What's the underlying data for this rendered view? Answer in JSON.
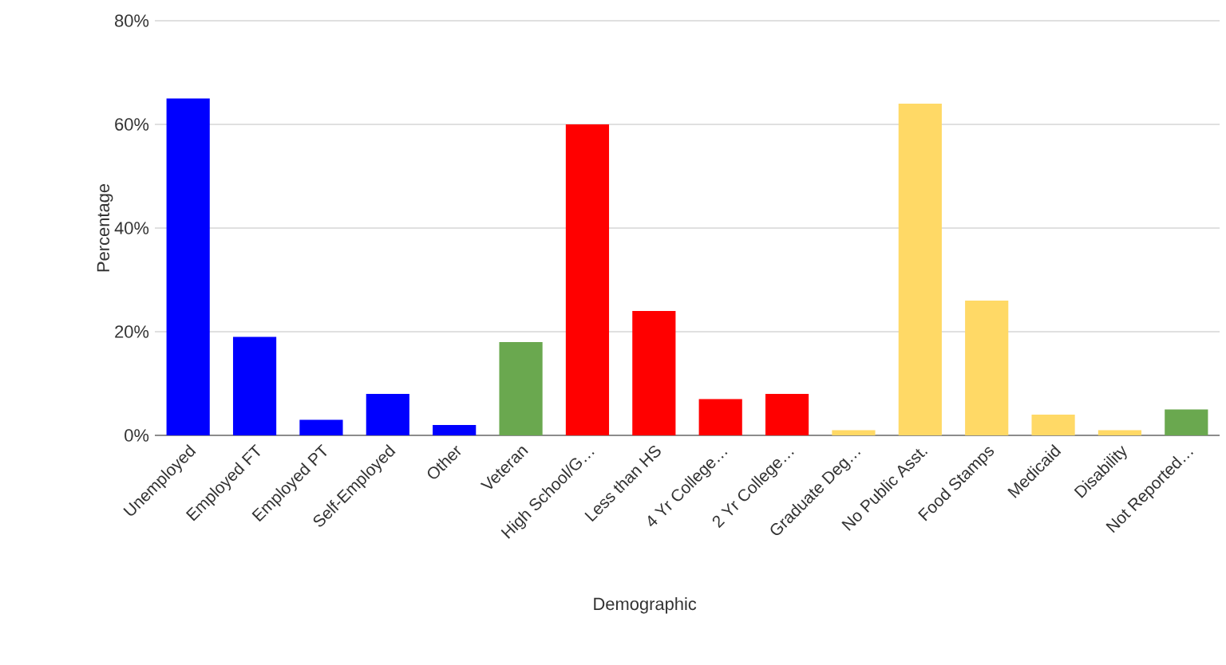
{
  "chart_data": {
    "type": "bar",
    "xlabel": "Demographic",
    "ylabel": "Percentage",
    "categories": [
      "Unemployed",
      "Employed FT",
      "Employed PT",
      "Self-Employed",
      "Other",
      "Veteran",
      "High School/G…",
      "Less than HS",
      "4 Yr College…",
      "2 Yr College…",
      "Graduate Deg…",
      "No Public Asst.",
      "Food Stamps",
      "Medicaid",
      "Disability",
      "Not Reported…"
    ],
    "values": [
      65,
      19,
      3,
      8,
      2,
      18,
      60,
      24,
      7,
      8,
      1,
      64,
      26,
      4,
      1,
      5
    ],
    "colors": [
      "#0000ff",
      "#0000ff",
      "#0000ff",
      "#0000ff",
      "#0000ff",
      "#6aa84f",
      "#ff0000",
      "#ff0000",
      "#ff0000",
      "#ff0000",
      "#ffd966",
      "#ffd966",
      "#ffd966",
      "#ffd966",
      "#ffd966",
      "#6aa84f"
    ],
    "ylim": [
      0,
      80
    ],
    "yticks": [
      {
        "value": 0,
        "label": "0%"
      },
      {
        "value": 20,
        "label": "20%"
      },
      {
        "value": 40,
        "label": "40%"
      },
      {
        "value": 60,
        "label": "60%"
      },
      {
        "value": 80,
        "label": "80%"
      }
    ],
    "grid": "y"
  }
}
